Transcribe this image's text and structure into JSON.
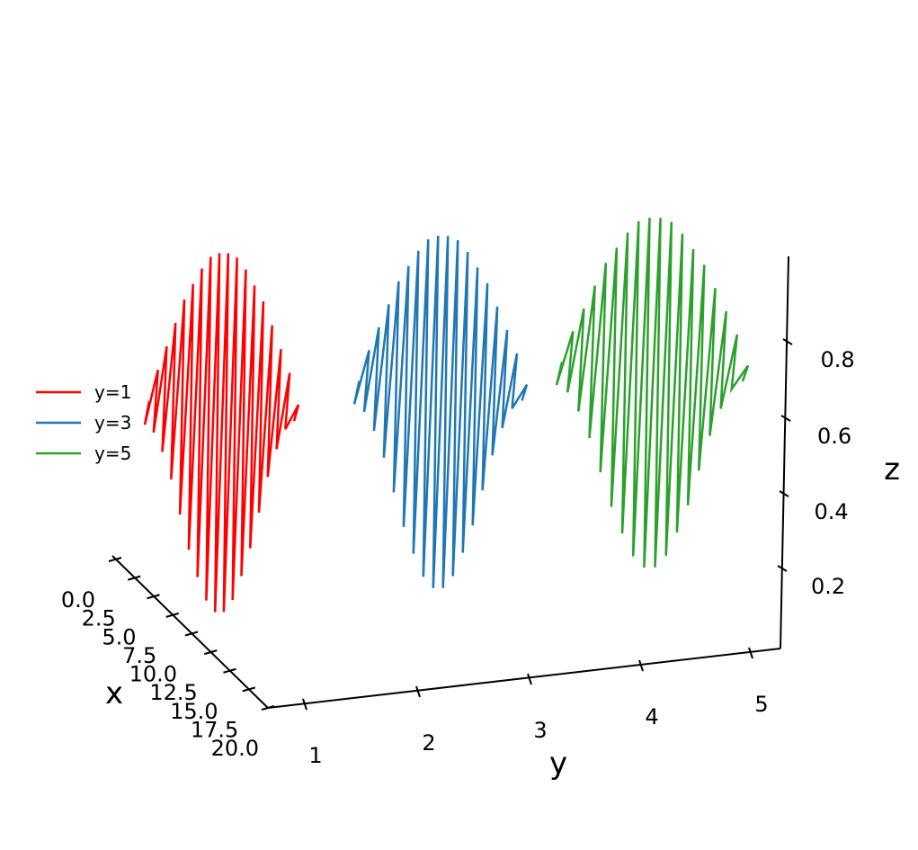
{
  "chart_data": {
    "type": "line",
    "projection": "3d",
    "title": "",
    "xlabel": "x",
    "ylabel": "y",
    "zlabel": "z",
    "xlim": [
      0,
      20
    ],
    "ylim": [
      1,
      5
    ],
    "x_ticks": [
      "0.0",
      "2.5",
      "5.0",
      "7.5",
      "10.0",
      "12.5",
      "15.0",
      "17.5",
      "20.0"
    ],
    "y_ticks": [
      "1",
      "2",
      "3",
      "4",
      "5"
    ],
    "z_ticks": [
      "0.2",
      "0.4",
      "0.6",
      "0.8"
    ],
    "grid": false,
    "legend_position": "center-left",
    "series": [
      {
        "name": "y=1",
        "y": 1,
        "color": "#ff0000",
        "z_low": [
          0.52,
          0.5,
          0.45,
          0.38,
          0.29,
          0.2,
          0.13,
          0.07,
          0.04,
          0.04,
          0.07,
          0.13,
          0.2,
          0.29,
          0.38,
          0.45,
          0.5,
          0.52
        ],
        "z_high": [
          0.58,
          0.66,
          0.72,
          0.78,
          0.84,
          0.88,
          0.92,
          0.95,
          0.96,
          0.96,
          0.95,
          0.92,
          0.88,
          0.84,
          0.78,
          0.72,
          0.66,
          0.58
        ]
      },
      {
        "name": "y=3",
        "y": 3,
        "color": "#1f77b4",
        "z_low": [
          0.52,
          0.5,
          0.45,
          0.38,
          0.29,
          0.2,
          0.13,
          0.07,
          0.04,
          0.04,
          0.07,
          0.13,
          0.2,
          0.29,
          0.38,
          0.45,
          0.5,
          0.52
        ],
        "z_high": [
          0.58,
          0.66,
          0.72,
          0.78,
          0.84,
          0.88,
          0.92,
          0.95,
          0.96,
          0.96,
          0.95,
          0.92,
          0.88,
          0.84,
          0.78,
          0.72,
          0.66,
          0.58
        ]
      },
      {
        "name": "y=5",
        "y": 5,
        "color": "#2ca02c",
        "z_low": [
          0.52,
          0.5,
          0.45,
          0.38,
          0.29,
          0.2,
          0.13,
          0.07,
          0.04,
          0.04,
          0.07,
          0.13,
          0.2,
          0.29,
          0.38,
          0.45,
          0.5,
          0.52
        ],
        "z_high": [
          0.58,
          0.66,
          0.72,
          0.78,
          0.84,
          0.88,
          0.92,
          0.95,
          0.96,
          0.96,
          0.95,
          0.92,
          0.88,
          0.84,
          0.78,
          0.72,
          0.66,
          0.58
        ]
      }
    ]
  }
}
